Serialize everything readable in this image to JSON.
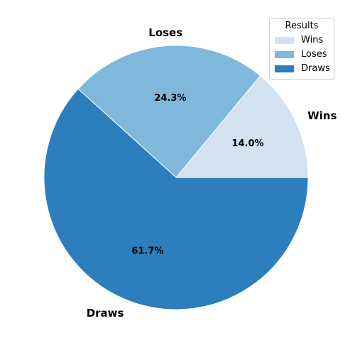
{
  "chart_data": {
    "type": "pie",
    "categories": [
      "Wins",
      "Loses",
      "Draws"
    ],
    "values": [
      14.0,
      24.3,
      61.7
    ],
    "percent_labels": [
      "14.0%",
      "24.3%",
      "61.7%"
    ],
    "colors": [
      "#d2e2f1",
      "#7fb8da",
      "#2c7ebc"
    ],
    "start_angle_deg": 0,
    "direction": "counterclockwise",
    "edge_color": "#ffffff",
    "legend": {
      "title": "Results",
      "placement": "top-right",
      "entries": [
        "Wins",
        "Loses",
        "Draws"
      ]
    }
  }
}
